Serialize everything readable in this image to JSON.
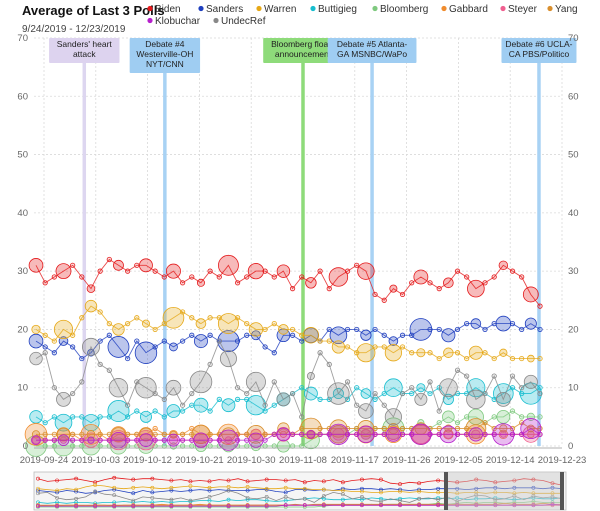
{
  "chart_data": {
    "type": "scatter",
    "title": "Average of Last 3 Polls",
    "subtitle": "9/24/2019 - 12/23/2019",
    "ylim": [
      0,
      70
    ],
    "y_ticks": [
      "0",
      "10",
      "20",
      "30",
      "40",
      "50",
      "60",
      "70"
    ],
    "x_ticks": [
      "2019-09-24",
      "2019-10-03",
      "2019-10-12",
      "2019-10-21",
      "2019-10-30",
      "2019-11-08",
      "2019-11-17",
      "2019-11-26",
      "2019-12-05",
      "2019-12-14",
      "2019-12-23"
    ],
    "legend_position": "top",
    "series": [
      {
        "name": "Biden",
        "color": "#e41a1c",
        "approx_range": [
          23,
          33
        ],
        "values": [
          31,
          28,
          29,
          30,
          31,
          29,
          27,
          30,
          32,
          31,
          30,
          31,
          31,
          30,
          29,
          30,
          28,
          29,
          28,
          30,
          29,
          31,
          28,
          29,
          30,
          30,
          29,
          30,
          27,
          29,
          28,
          30,
          27,
          29,
          30,
          31,
          30,
          26,
          25,
          27,
          26,
          28,
          29,
          28,
          27,
          28,
          30,
          29,
          27,
          28,
          29,
          31,
          30,
          29,
          26,
          24
        ]
      },
      {
        "name": "Sanders",
        "color": "#1f3fbf",
        "approx_range": [
          14,
          22
        ],
        "values": [
          18,
          17,
          16,
          18,
          17,
          15,
          16,
          18,
          19,
          17,
          15,
          18,
          16,
          17,
          18,
          17,
          18,
          19,
          18,
          19,
          18,
          18,
          18,
          19,
          19,
          17,
          16,
          19,
          19,
          18,
          19,
          18,
          20,
          19,
          20,
          20,
          19,
          20,
          19,
          18,
          19,
          19,
          20,
          20,
          20,
          19,
          20,
          21,
          21,
          20,
          21,
          21,
          21,
          20,
          21,
          20
        ]
      },
      {
        "name": "Warren",
        "color": "#e6a817",
        "approx_range": [
          14,
          24
        ],
        "values": [
          20,
          19,
          18,
          20,
          19,
          22,
          24,
          23,
          21,
          20,
          21,
          22,
          21,
          20,
          21,
          22,
          23,
          22,
          21,
          22,
          22,
          21,
          22,
          21,
          20,
          20,
          21,
          20,
          20,
          19,
          19,
          18,
          18,
          17,
          17,
          16,
          16,
          17,
          17,
          16,
          17,
          16,
          16,
          16,
          15,
          16,
          16,
          15,
          16,
          16,
          15,
          16,
          15,
          15,
          15,
          15
        ]
      },
      {
        "name": "Buttigieg",
        "color": "#17becf",
        "approx_range": [
          4,
          11
        ],
        "values": [
          5,
          4,
          5,
          4,
          5,
          5,
          4,
          5,
          5,
          6,
          5,
          6,
          5,
          6,
          5,
          6,
          6,
          7,
          7,
          6,
          8,
          7,
          8,
          8,
          7,
          6,
          7,
          8,
          9,
          10,
          9,
          8,
          8,
          9,
          8,
          10,
          9,
          8,
          9,
          10,
          9,
          9,
          10,
          9,
          10,
          8,
          9,
          9,
          10,
          9,
          8,
          9,
          10,
          9,
          9,
          10
        ]
      },
      {
        "name": "Bloomberg",
        "color": "#7fc97f",
        "approx_range": [
          0,
          6
        ],
        "values": [
          0,
          0,
          0,
          0,
          0,
          0,
          0,
          0,
          0,
          0,
          0,
          0,
          0,
          0,
          0,
          0,
          0,
          0,
          0,
          0,
          0,
          0,
          0,
          0,
          0,
          0,
          0,
          0,
          0,
          0,
          1,
          2,
          2,
          2,
          2,
          3,
          2,
          3,
          3,
          3,
          3,
          3,
          4,
          3,
          4,
          5,
          4,
          5,
          5,
          4,
          5,
          5,
          6,
          5,
          5,
          5
        ]
      },
      {
        "name": "Gabbard",
        "color": "#f08c2e",
        "approx_range": [
          1,
          3
        ],
        "values": [
          2,
          1,
          1,
          2,
          2,
          1,
          2,
          2,
          1,
          2,
          2,
          2,
          2,
          3,
          2,
          2,
          2,
          3,
          2,
          2,
          2,
          2,
          2,
          2,
          2,
          2,
          2,
          2,
          2,
          2,
          2,
          2,
          2,
          2,
          2,
          2,
          2,
          2,
          2,
          2,
          2,
          2,
          2,
          2,
          2,
          2,
          2,
          2,
          2,
          2,
          2,
          2,
          2,
          2,
          2,
          2
        ]
      },
      {
        "name": "Steyer",
        "color": "#f06090",
        "approx_range": [
          1,
          3
        ],
        "values": [
          1,
          1,
          1,
          1,
          1,
          1,
          1,
          1,
          1,
          1,
          1,
          1,
          1,
          1,
          1,
          1,
          1,
          1,
          1,
          1,
          1,
          1,
          2,
          2,
          2,
          2,
          2,
          2,
          2,
          2,
          2,
          2,
          2,
          2,
          2,
          2,
          2,
          2,
          2,
          2,
          2,
          2,
          2,
          2,
          2,
          2,
          2,
          2,
          2,
          2,
          2,
          2,
          2,
          2,
          2,
          2
        ]
      },
      {
        "name": "Yang",
        "color": "#d98f2e",
        "approx_range": [
          1,
          4
        ],
        "values": [
          2,
          2,
          2,
          2,
          2,
          2,
          2,
          2,
          2,
          2,
          2,
          2,
          2,
          2,
          2,
          2,
          2,
          2,
          2,
          2,
          2,
          2,
          2,
          2,
          2,
          2,
          2,
          3,
          2,
          3,
          3,
          3,
          3,
          3,
          3,
          3,
          3,
          3,
          3,
          3,
          3,
          3,
          3,
          3,
          3,
          3,
          3,
          3,
          3,
          4,
          3,
          3,
          3,
          4,
          3,
          3
        ]
      },
      {
        "name": "Klobuchar",
        "color": "#b61fcc",
        "approx_range": [
          1,
          3
        ],
        "values": [
          1,
          1,
          1,
          1,
          1,
          1,
          1,
          1,
          1,
          1,
          1,
          1,
          1,
          1,
          1,
          1,
          1,
          1,
          1,
          1,
          1,
          1,
          1,
          1,
          1,
          1,
          2,
          2,
          2,
          2,
          2,
          2,
          2,
          2,
          2,
          2,
          2,
          2,
          2,
          2,
          2,
          2,
          2,
          2,
          2,
          2,
          2,
          2,
          2,
          2,
          2,
          2,
          2,
          2,
          3,
          2
        ]
      },
      {
        "name": "UndecRef",
        "color": "#888888",
        "approx_range": [
          3,
          20
        ],
        "values": [
          15,
          16,
          10,
          8,
          9,
          11,
          17,
          14,
          13,
          10,
          7,
          11,
          10,
          9,
          8,
          10,
          7,
          9,
          11,
          14,
          18,
          15,
          10,
          9,
          11,
          7,
          11,
          8,
          9,
          5,
          12,
          16,
          14,
          9,
          11,
          7,
          6,
          9,
          7,
          5,
          9,
          10,
          8,
          11,
          6,
          10,
          13,
          12,
          8,
          9,
          12,
          8,
          12,
          10,
          11,
          9
        ]
      }
    ],
    "events": [
      {
        "label_lines": [
          "Sanders' heart",
          "attack"
        ],
        "date": "2019-10-01",
        "color": "#ddd6f0",
        "box_fill": "#ddd3ef"
      },
      {
        "label_lines": [
          "Debate #4",
          "Westerville-OH",
          "NYT/CNN"
        ],
        "date": "2019-10-15",
        "color": "#a8d2f4",
        "box_fill": "#9fcdf2"
      },
      {
        "label_lines": [
          "Bloomberg floats",
          "announcement"
        ],
        "date": "2019-11-08",
        "color": "#8edb7a",
        "box_fill": "#8edb7a"
      },
      {
        "label_lines": [
          "Debate #5 Atlanta-",
          "GA MSNBC/WaPo"
        ],
        "date": "2019-11-20",
        "color": "#a8d2f4",
        "box_fill": "#9fcdf2"
      },
      {
        "label_lines": [
          "Debate #6 UCLA-",
          "CA PBS/Politico"
        ],
        "date": "2019-12-19",
        "color": "#a8d2f4",
        "box_fill": "#9fcdf2"
      }
    ],
    "navigator": {
      "selected_range_start": "2019-09-24",
      "selected_range_end": "2019-12-23"
    }
  }
}
